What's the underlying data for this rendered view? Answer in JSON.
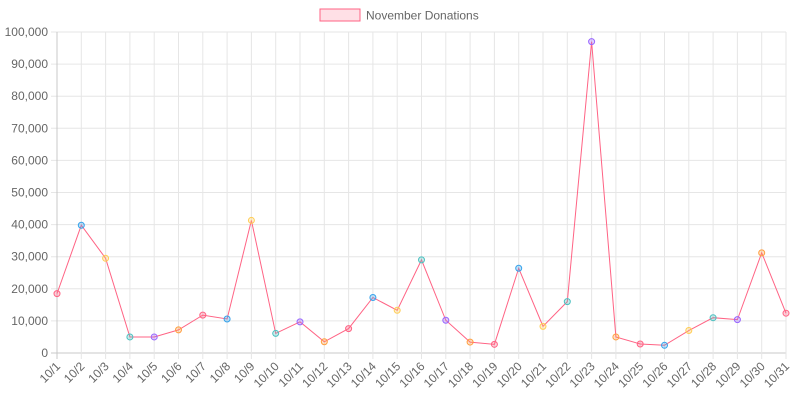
{
  "chart_data": {
    "type": "line",
    "legend": {
      "label": "November Donations",
      "placement": "top-center"
    },
    "categories": [
      "10/1",
      "10/2",
      "10/3",
      "10/4",
      "10/5",
      "10/6",
      "10/7",
      "10/8",
      "10/9",
      "10/10",
      "10/11",
      "10/12",
      "10/13",
      "10/14",
      "10/15",
      "10/16",
      "10/17",
      "10/18",
      "10/19",
      "10/20",
      "10/21",
      "10/22",
      "10/23",
      "10/24",
      "10/25",
      "10/26",
      "10/27",
      "10/28",
      "10/29",
      "10/30",
      "10/31"
    ],
    "series": [
      {
        "name": "November Donations",
        "values": [
          18500,
          39800,
          29500,
          5000,
          5000,
          7200,
          11800,
          10600,
          41300,
          6100,
          9700,
          3500,
          7600,
          17300,
          13300,
          29000,
          10200,
          3400,
          2700,
          26400,
          8300,
          16000,
          97000,
          5000,
          2800,
          2400,
          7000,
          11000,
          10400,
          31200,
          12400
        ],
        "line_color": "#ff6384",
        "point_colors": [
          "#ff6384",
          "#36a2eb",
          "#ffcd56",
          "#4bc0c0",
          "#9966ff",
          "#ff9f40",
          "#ff6384",
          "#36a2eb",
          "#ffcd56",
          "#4bc0c0",
          "#9966ff",
          "#ff9f40",
          "#ff6384",
          "#36a2eb",
          "#ffcd56",
          "#4bc0c0",
          "#9966ff",
          "#ff9f40",
          "#ff6384",
          "#36a2eb",
          "#ffcd56",
          "#4bc0c0",
          "#9966ff",
          "#ff9f40",
          "#ff6384",
          "#36a2eb",
          "#ffcd56",
          "#4bc0c0",
          "#9966ff",
          "#ff9f40",
          "#ff6384"
        ]
      }
    ],
    "ylim": [
      0,
      100000
    ],
    "y_ticks": [
      "0",
      "10,000",
      "20,000",
      "30,000",
      "40,000",
      "50,000",
      "60,000",
      "70,000",
      "80,000",
      "90,000",
      "100,000"
    ],
    "grid": true
  }
}
